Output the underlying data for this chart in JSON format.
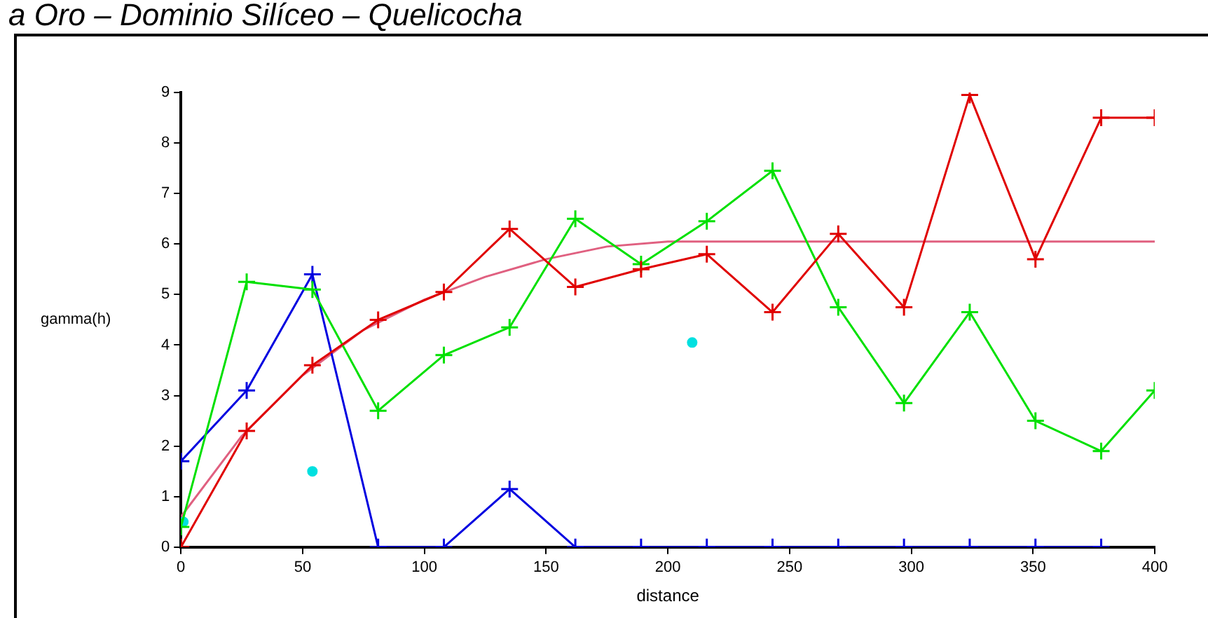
{
  "chart_data": {
    "type": "line",
    "title": "a Oro – Dominio Silíceo – Quelicocha",
    "xlabel": "distance",
    "ylabel": "gamma(h)",
    "xlim": [
      0,
      400
    ],
    "xticks": [
      0,
      50,
      100,
      150,
      200,
      250,
      300,
      350,
      400
    ],
    "ylim": [
      0,
      9
    ],
    "yticks": [
      0,
      1,
      2,
      3,
      4,
      5,
      6,
      7,
      8,
      9
    ],
    "grid": false,
    "legend": false,
    "marker": "cross",
    "line_style": "solid",
    "series": [
      {
        "color": "#e00000",
        "x": [
          0,
          27,
          54,
          81,
          108,
          135,
          162,
          189,
          216,
          243,
          270,
          297,
          324,
          351,
          378,
          400
        ],
        "values": [
          0,
          2.3,
          3.6,
          4.5,
          5.05,
          6.3,
          5.15,
          5.5,
          5.8,
          4.65,
          6.2,
          4.75,
          8.95,
          5.7,
          8.5,
          8.5
        ]
      },
      {
        "color": "#00e000",
        "x": [
          0,
          27,
          54,
          81,
          108,
          135,
          162,
          189,
          216,
          243,
          270,
          297,
          324,
          351,
          378,
          400
        ],
        "values": [
          0.4,
          5.25,
          5.1,
          2.7,
          3.8,
          4.35,
          6.5,
          5.6,
          6.45,
          7.45,
          4.75,
          2.85,
          4.65,
          2.5,
          1.9,
          3.1
        ]
      },
      {
        "color": "#0000e0",
        "x": [
          0,
          27,
          54,
          81,
          108,
          135,
          162,
          189,
          216,
          243,
          270,
          297,
          324,
          351,
          378
        ],
        "values": [
          1.7,
          3.1,
          5.4,
          0,
          0,
          1.15,
          0,
          0,
          0,
          0,
          0,
          0,
          0,
          0,
          0
        ]
      },
      {
        "color": "#e06080",
        "marker": "none",
        "x": [
          0,
          25,
          50,
          75,
          100,
          125,
          150,
          175,
          200,
          400
        ],
        "values": [
          0.6,
          2.2,
          3.4,
          4.3,
          4.9,
          5.35,
          5.7,
          5.95,
          6.05,
          6.05
        ]
      },
      {
        "type": "scatter",
        "color": "#00e0e0",
        "marker": "circle",
        "x": [
          1,
          54,
          210
        ],
        "values": [
          0.5,
          1.5,
          4.05
        ]
      }
    ]
  }
}
